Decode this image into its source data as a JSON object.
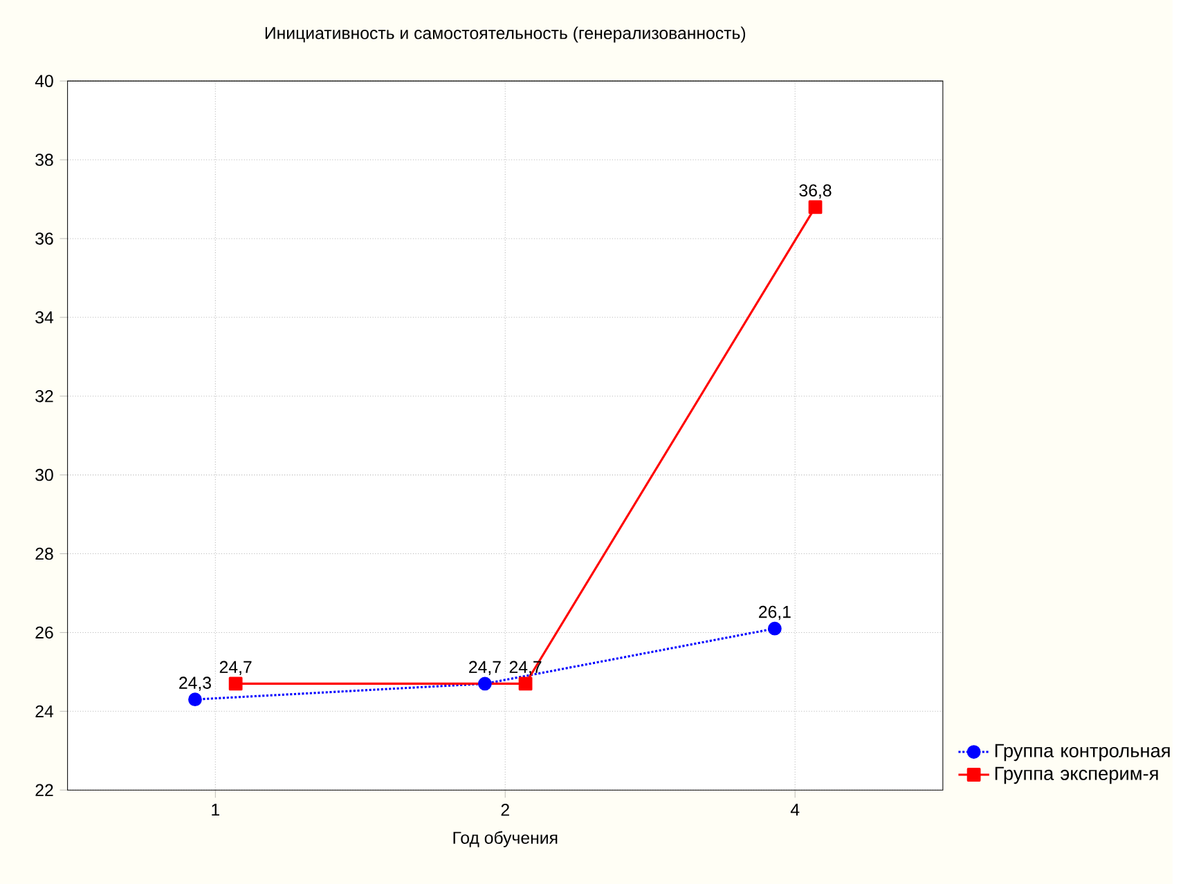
{
  "chart_data": {
    "type": "line",
    "title": "Инициативность и самостоятельность (генерализованность)",
    "xlabel": "Год обучения",
    "categories": [
      "1",
      "2",
      "4"
    ],
    "series": [
      {
        "name": "Группа контрольная",
        "color": "#0000ff",
        "values": [
          24.3,
          24.7,
          26.1
        ],
        "value_labels": [
          "24,3",
          "24,7",
          "26,1"
        ],
        "marker": "circle",
        "line_style": "dotted"
      },
      {
        "name": "Группа эксперим-я",
        "color": "#ff0000",
        "values": [
          24.7,
          24.7,
          36.8
        ],
        "value_labels": [
          "24,7",
          "24,7",
          "36,8"
        ],
        "marker": "square",
        "line_style": "solid"
      }
    ],
    "ylim": [
      22,
      40
    ],
    "yticks": [
      22,
      24,
      26,
      28,
      30,
      32,
      34,
      36,
      38,
      40
    ],
    "grid": true,
    "legend": "bottom right"
  }
}
